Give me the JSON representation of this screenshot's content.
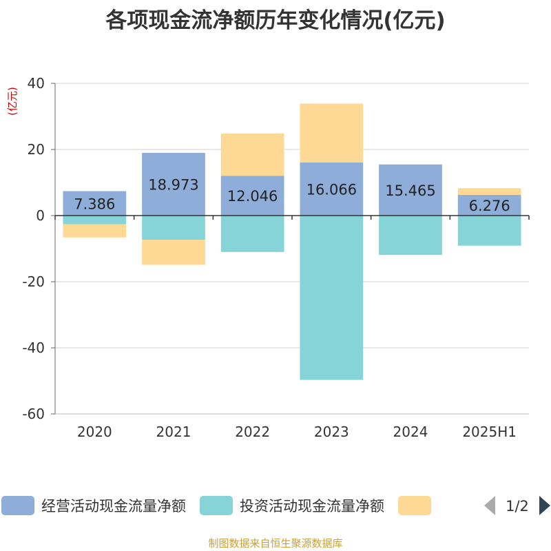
{
  "chart_data": {
    "type": "bar",
    "stacked": true,
    "title": "各项现金流净额历年变化情况(亿元)",
    "ylabel": "(亿元)",
    "categories": [
      "2020",
      "2021",
      "2022",
      "2023",
      "2024",
      "2025H1"
    ],
    "ylim": [
      -60,
      40
    ],
    "yticks": [
      40,
      20,
      0,
      -20,
      -40,
      -60
    ],
    "grid": true,
    "series": [
      {
        "name": "经营活动现金流量净额",
        "color": "#8eadd8",
        "values": [
          7.386,
          18.973,
          12.046,
          16.066,
          15.465,
          6.276
        ],
        "labels": [
          "7.386",
          "18.973",
          "12.046",
          "16.066",
          "15.465",
          "6.276"
        ]
      },
      {
        "name": "投资活动现金流量净额",
        "color": "#86d4d8",
        "values": [
          -2.6,
          -7.3,
          -11.0,
          -49.7,
          -11.9,
          -9.1
        ]
      },
      {
        "name": "",
        "color": "#fed996",
        "values": [
          -4.0,
          -7.6,
          12.8,
          17.8,
          0,
          2.0
        ]
      }
    ],
    "legend": {
      "position": "bottom",
      "page": "1/2"
    }
  },
  "source": "制图数据来自恒生聚源数据库"
}
